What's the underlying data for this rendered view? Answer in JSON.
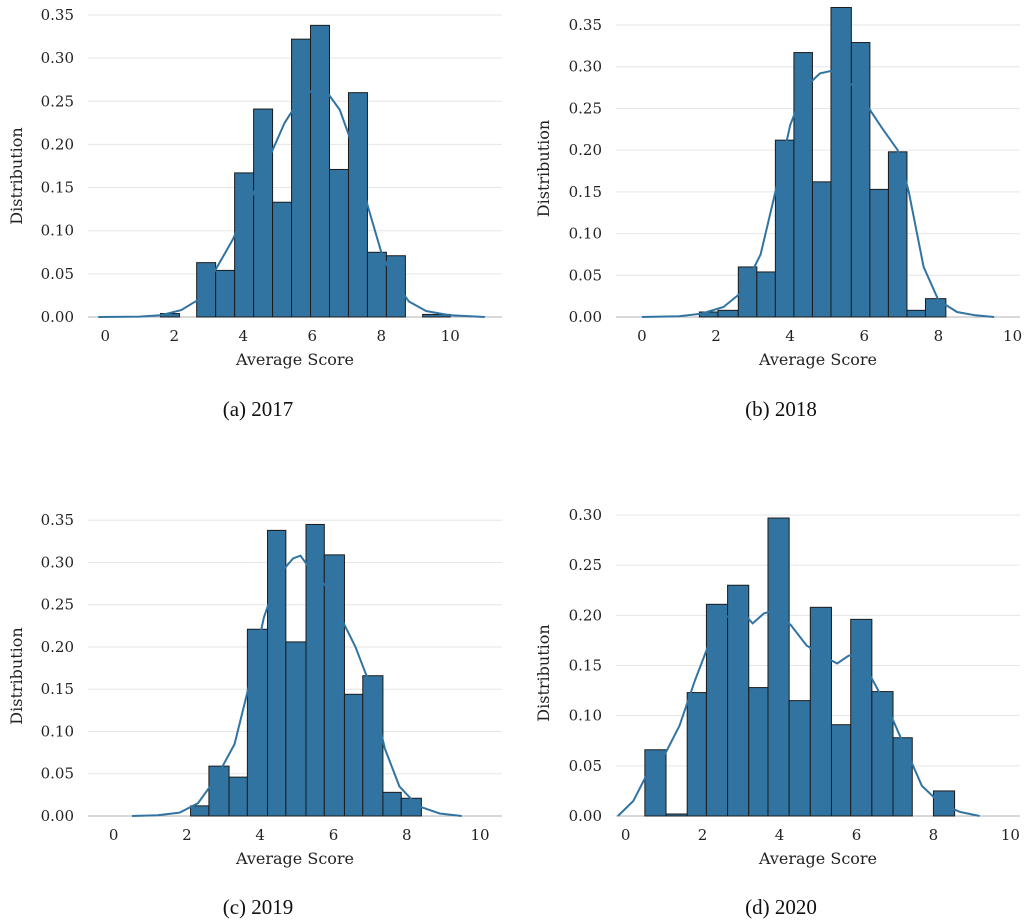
{
  "chart_data": [
    {
      "type": "bar",
      "caption": "(a) 2017",
      "xlabel": "Average Score",
      "ylabel": "Distribution",
      "xticks": [
        0,
        2,
        4,
        6,
        8,
        10
      ],
      "yticks": [
        0.0,
        0.05,
        0.1,
        0.15,
        0.2,
        0.25,
        0.3,
        0.35
      ],
      "xlim": [
        -0.5,
        11.5
      ],
      "ylim": [
        0,
        0.35
      ],
      "grid": true,
      "bins": [
        {
          "x0": 1.6,
          "x1": 2.15,
          "y": 0.004
        },
        {
          "x0": 2.65,
          "x1": 3.2,
          "y": 0.063
        },
        {
          "x0": 3.2,
          "x1": 3.75,
          "y": 0.054
        },
        {
          "x0": 3.75,
          "x1": 4.3,
          "y": 0.167
        },
        {
          "x0": 4.3,
          "x1": 4.85,
          "y": 0.241
        },
        {
          "x0": 4.85,
          "x1": 5.4,
          "y": 0.133
        },
        {
          "x0": 5.4,
          "x1": 5.95,
          "y": 0.322
        },
        {
          "x0": 5.95,
          "x1": 6.5,
          "y": 0.338
        },
        {
          "x0": 6.5,
          "x1": 7.05,
          "y": 0.171
        },
        {
          "x0": 7.05,
          "x1": 7.6,
          "y": 0.26
        },
        {
          "x0": 7.6,
          "x1": 8.15,
          "y": 0.075
        },
        {
          "x0": 8.15,
          "x1": 8.7,
          "y": 0.071
        },
        {
          "x0": 9.2,
          "x1": 10.0,
          "y": 0.003
        }
      ],
      "kde": [
        [
          -0.2,
          0
        ],
        [
          1.0,
          0.0005
        ],
        [
          1.6,
          0.002
        ],
        [
          2.2,
          0.008
        ],
        [
          2.7,
          0.02
        ],
        [
          3.2,
          0.055
        ],
        [
          3.7,
          0.09
        ],
        [
          4.2,
          0.135
        ],
        [
          4.7,
          0.18
        ],
        [
          5.2,
          0.225
        ],
        [
          5.6,
          0.25
        ],
        [
          6.0,
          0.263
        ],
        [
          6.4,
          0.262
        ],
        [
          6.8,
          0.24
        ],
        [
          7.2,
          0.195
        ],
        [
          7.6,
          0.13
        ],
        [
          8.0,
          0.075
        ],
        [
          8.4,
          0.04
        ],
        [
          8.8,
          0.018
        ],
        [
          9.3,
          0.007
        ],
        [
          10.0,
          0.002
        ],
        [
          11.0,
          0
        ]
      ]
    },
    {
      "type": "bar",
      "caption": "(b) 2018",
      "xlabel": "Average Score",
      "ylabel": "Distribution",
      "xticks": [
        0,
        2,
        4,
        6,
        8,
        10
      ],
      "yticks": [
        0.0,
        0.05,
        0.1,
        0.15,
        0.2,
        0.25,
        0.3,
        0.35
      ],
      "xlim": [
        -0.7,
        10.2
      ],
      "ylim": [
        0,
        0.38
      ],
      "grid": true,
      "bins": [
        {
          "x0": 1.55,
          "x1": 2.05,
          "y": 0.006
        },
        {
          "x0": 2.05,
          "x1": 2.6,
          "y": 0.008
        },
        {
          "x0": 2.6,
          "x1": 3.1,
          "y": 0.06
        },
        {
          "x0": 3.1,
          "x1": 3.6,
          "y": 0.054
        },
        {
          "x0": 3.6,
          "x1": 4.1,
          "y": 0.212
        },
        {
          "x0": 4.1,
          "x1": 4.6,
          "y": 0.317
        },
        {
          "x0": 4.6,
          "x1": 5.1,
          "y": 0.162
        },
        {
          "x0": 5.1,
          "x1": 5.65,
          "y": 0.371
        },
        {
          "x0": 5.65,
          "x1": 6.15,
          "y": 0.329
        },
        {
          "x0": 6.15,
          "x1": 6.65,
          "y": 0.153
        },
        {
          "x0": 6.65,
          "x1": 7.15,
          "y": 0.198
        },
        {
          "x0": 7.15,
          "x1": 7.65,
          "y": 0.008
        },
        {
          "x0": 7.65,
          "x1": 8.2,
          "y": 0.022
        }
      ],
      "kde": [
        [
          0.0,
          0
        ],
        [
          1.0,
          0.001
        ],
        [
          1.6,
          0.004
        ],
        [
          2.2,
          0.012
        ],
        [
          2.7,
          0.03
        ],
        [
          3.2,
          0.075
        ],
        [
          3.6,
          0.15
        ],
        [
          4.0,
          0.23
        ],
        [
          4.4,
          0.275
        ],
        [
          4.8,
          0.292
        ],
        [
          5.1,
          0.295
        ],
        [
          5.4,
          0.285
        ],
        [
          5.8,
          0.275
        ],
        [
          6.2,
          0.245
        ],
        [
          6.5,
          0.225
        ],
        [
          6.9,
          0.2
        ],
        [
          7.2,
          0.15
        ],
        [
          7.6,
          0.06
        ],
        [
          8.0,
          0.02
        ],
        [
          8.5,
          0.006
        ],
        [
          9.0,
          0.002
        ],
        [
          9.5,
          0
        ]
      ]
    },
    {
      "type": "bar",
      "caption": "(c) 2019",
      "xlabel": "Average Score",
      "ylabel": "Distribution",
      "xticks": [
        0,
        2,
        4,
        6,
        8,
        10
      ],
      "yticks": [
        0.0,
        0.05,
        0.1,
        0.15,
        0.2,
        0.25,
        0.3,
        0.35
      ],
      "xlim": [
        -0.7,
        10.6
      ],
      "ylim": [
        0,
        0.355
      ],
      "grid": true,
      "bins": [
        {
          "x0": 2.1,
          "x1": 2.6,
          "y": 0.012
        },
        {
          "x0": 2.6,
          "x1": 3.15,
          "y": 0.059
        },
        {
          "x0": 3.15,
          "x1": 3.65,
          "y": 0.046
        },
        {
          "x0": 3.65,
          "x1": 4.2,
          "y": 0.221
        },
        {
          "x0": 4.2,
          "x1": 4.7,
          "y": 0.338
        },
        {
          "x0": 4.7,
          "x1": 5.25,
          "y": 0.206
        },
        {
          "x0": 5.25,
          "x1": 5.75,
          "y": 0.345
        },
        {
          "x0": 5.75,
          "x1": 6.3,
          "y": 0.309
        },
        {
          "x0": 6.3,
          "x1": 6.8,
          "y": 0.144
        },
        {
          "x0": 6.8,
          "x1": 7.35,
          "y": 0.166
        },
        {
          "x0": 7.35,
          "x1": 7.85,
          "y": 0.028
        },
        {
          "x0": 7.85,
          "x1": 8.4,
          "y": 0.021
        }
      ],
      "kde": [
        [
          0.5,
          0
        ],
        [
          1.2,
          0.001
        ],
        [
          1.8,
          0.004
        ],
        [
          2.3,
          0.015
        ],
        [
          2.8,
          0.045
        ],
        [
          3.3,
          0.085
        ],
        [
          3.7,
          0.155
        ],
        [
          4.1,
          0.235
        ],
        [
          4.5,
          0.285
        ],
        [
          4.9,
          0.305
        ],
        [
          5.1,
          0.308
        ],
        [
          5.4,
          0.29
        ],
        [
          5.8,
          0.272
        ],
        [
          6.2,
          0.235
        ],
        [
          6.6,
          0.2
        ],
        [
          7.0,
          0.155
        ],
        [
          7.4,
          0.08
        ],
        [
          7.8,
          0.035
        ],
        [
          8.3,
          0.012
        ],
        [
          8.9,
          0.003
        ],
        [
          9.5,
          0
        ]
      ]
    },
    {
      "type": "bar",
      "caption": "(d) 2020",
      "xlabel": "Average Score",
      "ylabel": "Distribution",
      "xticks": [
        0,
        2,
        4,
        6,
        8,
        10
      ],
      "yticks": [
        0.0,
        0.05,
        0.1,
        0.15,
        0.2,
        0.25,
        0.3
      ],
      "xlim": [
        -0.25,
        10.25
      ],
      "ylim": [
        0,
        0.305
      ],
      "grid": true,
      "bins": [
        {
          "x0": 0.5,
          "x1": 1.05,
          "y": 0.066
        },
        {
          "x0": 1.05,
          "x1": 1.6,
          "y": 0.002
        },
        {
          "x0": 1.6,
          "x1": 2.1,
          "y": 0.123
        },
        {
          "x0": 2.1,
          "x1": 2.65,
          "y": 0.211
        },
        {
          "x0": 2.65,
          "x1": 3.2,
          "y": 0.23
        },
        {
          "x0": 3.2,
          "x1": 3.7,
          "y": 0.128
        },
        {
          "x0": 3.7,
          "x1": 4.25,
          "y": 0.297
        },
        {
          "x0": 4.25,
          "x1": 4.8,
          "y": 0.115
        },
        {
          "x0": 4.8,
          "x1": 5.35,
          "y": 0.208
        },
        {
          "x0": 5.35,
          "x1": 5.85,
          "y": 0.091
        },
        {
          "x0": 5.85,
          "x1": 6.4,
          "y": 0.196
        },
        {
          "x0": 6.4,
          "x1": 6.95,
          "y": 0.124
        },
        {
          "x0": 6.95,
          "x1": 7.45,
          "y": 0.078
        },
        {
          "x0": 7.45,
          "x1": 8.0,
          "y": 0.0
        },
        {
          "x0": 8.0,
          "x1": 8.55,
          "y": 0.025
        }
      ],
      "kde": [
        [
          -0.2,
          0
        ],
        [
          0.2,
          0.015
        ],
        [
          0.6,
          0.045
        ],
        [
          1.0,
          0.06
        ],
        [
          1.4,
          0.09
        ],
        [
          1.8,
          0.135
        ],
        [
          2.2,
          0.175
        ],
        [
          2.6,
          0.198
        ],
        [
          3.0,
          0.205
        ],
        [
          3.3,
          0.192
        ],
        [
          3.6,
          0.202
        ],
        [
          3.9,
          0.205
        ],
        [
          4.3,
          0.19
        ],
        [
          4.7,
          0.17
        ],
        [
          5.1,
          0.16
        ],
        [
          5.5,
          0.152
        ],
        [
          5.8,
          0.16
        ],
        [
          6.1,
          0.158
        ],
        [
          6.5,
          0.13
        ],
        [
          6.9,
          0.1
        ],
        [
          7.3,
          0.065
        ],
        [
          7.7,
          0.03
        ],
        [
          8.2,
          0.012
        ],
        [
          8.7,
          0.004
        ],
        [
          9.2,
          0
        ]
      ]
    }
  ]
}
